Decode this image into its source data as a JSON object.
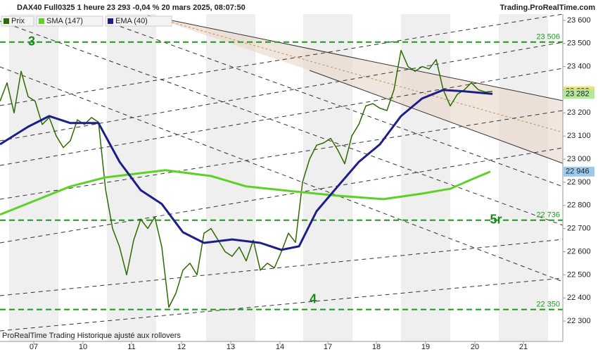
{
  "header": {
    "title": "DAX40 Full0325 1 heure 23 293 -0,04 % 20 mars 2025, 08:07:50",
    "site": "Trading.ProRealTime.com"
  },
  "footer": "ProRealTime Trading Historique ajusté aux rollovers",
  "chart_data": {
    "type": "line",
    "xlim": [
      0,
      160
    ],
    "ylim": [
      22212,
      23627
    ],
    "xticks": [
      {
        "value": 9.6,
        "label": "07"
      },
      {
        "value": 23.6,
        "label": "10"
      },
      {
        "value": 37.4,
        "label": "11"
      },
      {
        "value": 51.6,
        "label": "12"
      },
      {
        "value": 65.6,
        "label": "13"
      },
      {
        "value": 79.6,
        "label": "14"
      },
      {
        "value": 93.2,
        "label": "17"
      },
      {
        "value": 107,
        "label": "18"
      },
      {
        "value": 121,
        "label": "19"
      },
      {
        "value": 135,
        "label": "20"
      },
      {
        "value": 148.8,
        "label": "21"
      }
    ],
    "yticks": [
      {
        "value": 22300,
        "label": "22 300"
      },
      {
        "value": 22400,
        "label": "22 400"
      },
      {
        "value": 22500,
        "label": "22 500"
      },
      {
        "value": 22600,
        "label": "22 600"
      },
      {
        "value": 22700,
        "label": "22 700"
      },
      {
        "value": 22800,
        "label": "22 800"
      },
      {
        "value": 22900,
        "label": "22 900"
      },
      {
        "value": 23000,
        "label": "23 000"
      },
      {
        "value": 23100,
        "label": "23 100"
      },
      {
        "value": 23200,
        "label": "23 200"
      },
      {
        "value": 23300,
        "label": "23 300"
      },
      {
        "value": 23400,
        "label": "23 400"
      },
      {
        "value": 23500,
        "label": "23 500"
      },
      {
        "value": 23600,
        "label": "23 600"
      }
    ],
    "series": [
      {
        "name": "Prix",
        "color": "#2d6a00",
        "last_label": "23 293",
        "x": [
          0,
          2,
          4,
          6,
          8,
          10,
          12,
          14,
          16,
          18,
          20,
          22,
          24,
          26,
          28,
          30,
          32,
          34,
          36,
          38,
          40,
          42,
          44,
          46,
          48,
          50,
          52,
          54,
          56,
          58,
          60,
          62,
          64,
          66,
          68,
          70,
          72,
          74,
          76,
          78,
          80,
          82,
          84,
          86,
          88,
          90,
          92,
          94,
          96,
          98,
          100,
          102,
          104,
          106,
          108,
          110,
          112,
          114,
          116,
          118,
          120,
          122,
          124,
          126,
          128,
          130,
          132,
          134,
          136,
          138,
          140
        ],
        "values": [
          23250,
          23330,
          23200,
          23380,
          23270,
          23250,
          23150,
          23180,
          23100,
          23050,
          23080,
          23170,
          23150,
          23180,
          23160,
          22870,
          22700,
          22620,
          22500,
          22650,
          22740,
          22700,
          22750,
          22620,
          22360,
          22420,
          22520,
          22550,
          22500,
          22680,
          22700,
          22650,
          22600,
          22580,
          22620,
          22560,
          22650,
          22520,
          22550,
          22530,
          22600,
          22680,
          22640,
          22900,
          23000,
          23060,
          23070,
          23090,
          23040,
          22980,
          23100,
          23150,
          23230,
          23240,
          23220,
          23210,
          23300,
          23470,
          23400,
          23380,
          23400,
          23390,
          23430,
          23300,
          23230,
          23280,
          23300,
          23330,
          23300,
          23290,
          23293
        ]
      },
      {
        "name": "SMA (147)",
        "color": "#5fd02a",
        "last_label": "22 946",
        "x": [
          0,
          10,
          20,
          30,
          47,
          60,
          70,
          84,
          96,
          109,
          120,
          128,
          134,
          139.4
        ],
        "values": [
          22760,
          22821,
          22882,
          22921,
          22952,
          22927,
          22882,
          22860,
          22842,
          22827,
          22851,
          22872,
          22912,
          22946
        ]
      },
      {
        "name": "EMA (40)",
        "color": "#1e1e8a",
        "last_label": "23 282",
        "x": [
          0,
          8,
          14,
          20,
          28,
          34,
          40,
          46,
          52,
          58,
          66,
          74,
          80,
          85,
          90,
          96,
          102,
          108,
          114,
          120,
          126,
          132,
          140
        ],
        "values": [
          23064,
          23140,
          23186,
          23156,
          23156,
          22988,
          22866,
          22806,
          22684,
          22638,
          22653,
          22638,
          22608,
          22623,
          22775,
          22882,
          22988,
          23064,
          23186,
          23262,
          23299,
          23293,
          23282
        ]
      }
    ],
    "levels": [
      {
        "value": 23506,
        "label": "23 506"
      },
      {
        "value": 22736,
        "label": "22 736"
      },
      {
        "value": 22350,
        "label": "22 350"
      }
    ],
    "annotations": [
      "3",
      "5r",
      "4"
    ]
  }
}
